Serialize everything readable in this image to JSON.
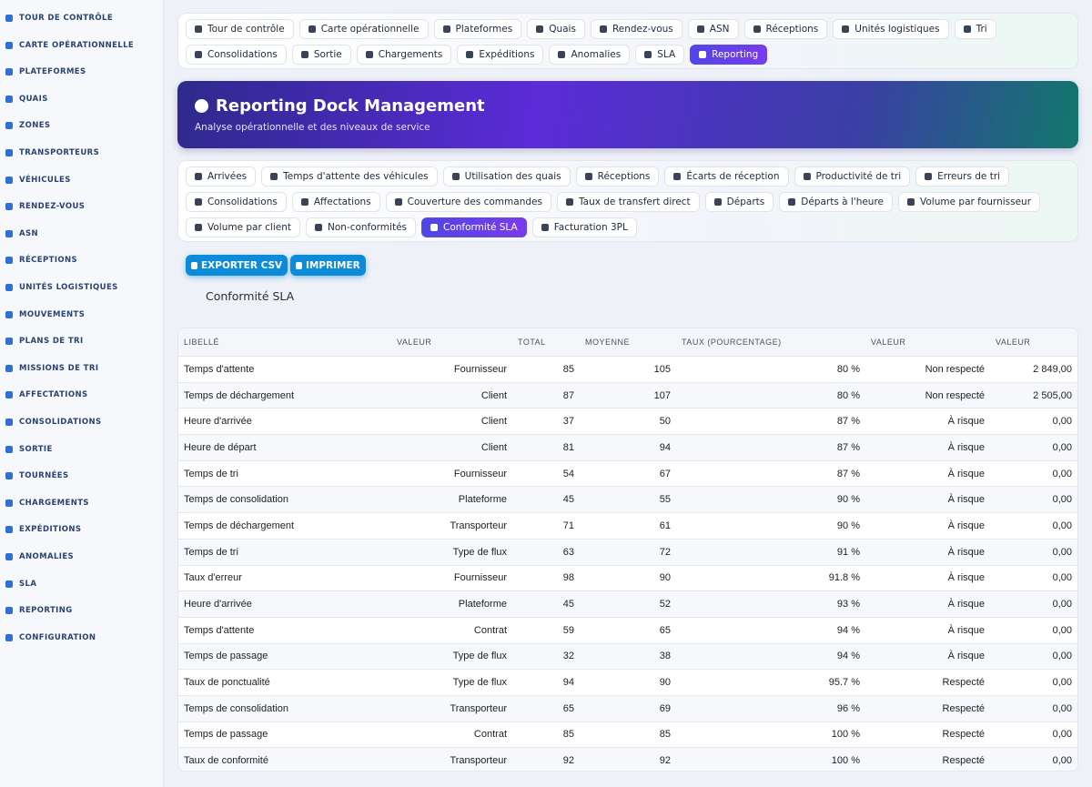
{
  "sidebar": {
    "items": [
      "TOUR DE CONTRÔLE",
      "CARTE OPÉRATIONNELLE",
      "PLATEFORMES",
      "QUAIS",
      "ZONES",
      "TRANSPORTEURS",
      "VÉHICULES",
      "RENDEZ-VOUS",
      "ASN",
      "RÉCEPTIONS",
      "UNITÉS LOGISTIQUES",
      "MOUVEMENTS",
      "PLANS DE TRI",
      "MISSIONS DE TRI",
      "AFFECTATIONS",
      "CONSOLIDATIONS",
      "SORTIE",
      "TOURNÉES",
      "CHARGEMENTS",
      "EXPÉDITIONS",
      "ANOMALIES",
      "SLA",
      "REPORTING",
      "CONFIGURATION"
    ]
  },
  "top_tabs": [
    "Tour de contrôle",
    "Carte opérationnelle",
    "Plateformes",
    "Quais",
    "Rendez-vous",
    "ASN",
    "Réceptions",
    "Unités logistiques",
    "Tri",
    "Consolidations",
    "Sortie",
    "Chargements",
    "Expéditions",
    "Anomalies",
    "SLA",
    "Reporting"
  ],
  "header": {
    "title": "Reporting Dock Management",
    "subtitle": "Analyse opérationnelle et des niveaux de service"
  },
  "report_tabs": [
    "Arrivées",
    "Temps d'attente des véhicules",
    "Utilisation des quais",
    "Réceptions",
    "Écarts de réception",
    "Productivité de tri",
    "Erreurs de tri",
    "Consolidations",
    "Affectations",
    "Couverture des commandes",
    "Taux de transfert direct",
    "Départs",
    "Départs à l'heure",
    "Volume par fournisseur",
    "Volume par client",
    "Non-conformités",
    "Conformité SLA",
    "Facturation 3PL"
  ],
  "buttons": [
    "EXPORTER CSV",
    "IMPRIMER"
  ],
  "report_title": "Conformité SLA",
  "table": {
    "columns": [
      "LIBELLÉ",
      "VALEUR",
      "TOTAL",
      "MOYENNE",
      "TAUX (POURCENTAGE)",
      "VALEUR",
      "VALEUR"
    ],
    "rows": [
      [
        "Temps d'attente",
        "Fournisseur",
        "85",
        "105",
        "80 %",
        "Non respecté",
        "2 849,00"
      ],
      [
        "Temps de déchargement",
        "Client",
        "87",
        "107",
        "80 %",
        "Non respecté",
        "2 505,00"
      ],
      [
        "Heure d'arrivée",
        "Client",
        "37",
        "50",
        "87 %",
        "À risque",
        "0,00"
      ],
      [
        "Heure de départ",
        "Client",
        "81",
        "94",
        "87 %",
        "À risque",
        "0,00"
      ],
      [
        "Temps de tri",
        "Fournisseur",
        "54",
        "67",
        "87 %",
        "À risque",
        "0,00"
      ],
      [
        "Temps de consolidation",
        "Plateforme",
        "45",
        "55",
        "90 %",
        "À risque",
        "0,00"
      ],
      [
        "Temps de déchargement",
        "Transporteur",
        "71",
        "61",
        "90 %",
        "À risque",
        "0,00"
      ],
      [
        "Temps de tri",
        "Type de flux",
        "63",
        "72",
        "91 %",
        "À risque",
        "0,00"
      ],
      [
        "Taux d'erreur",
        "Fournisseur",
        "98",
        "90",
        "91.8 %",
        "À risque",
        "0,00"
      ],
      [
        "Heure d'arrivée",
        "Plateforme",
        "45",
        "52",
        "93 %",
        "À risque",
        "0,00"
      ],
      [
        "Temps d'attente",
        "Contrat",
        "59",
        "65",
        "94 %",
        "À risque",
        "0,00"
      ],
      [
        "Temps de passage",
        "Type de flux",
        "32",
        "38",
        "94 %",
        "À risque",
        "0,00"
      ],
      [
        "Taux de ponctualité",
        "Type de flux",
        "94",
        "90",
        "95.7 %",
        "Respecté",
        "0,00"
      ],
      [
        "Temps de consolidation",
        "Transporteur",
        "65",
        "69",
        "96 %",
        "Respecté",
        "0,00"
      ],
      [
        "Temps de passage",
        "Contrat",
        "85",
        "85",
        "100 %",
        "Respecté",
        "0,00"
      ],
      [
        "Taux de conformité",
        "Transporteur",
        "92",
        "92",
        "100 %",
        "Respecté",
        "0,00"
      ]
    ]
  }
}
